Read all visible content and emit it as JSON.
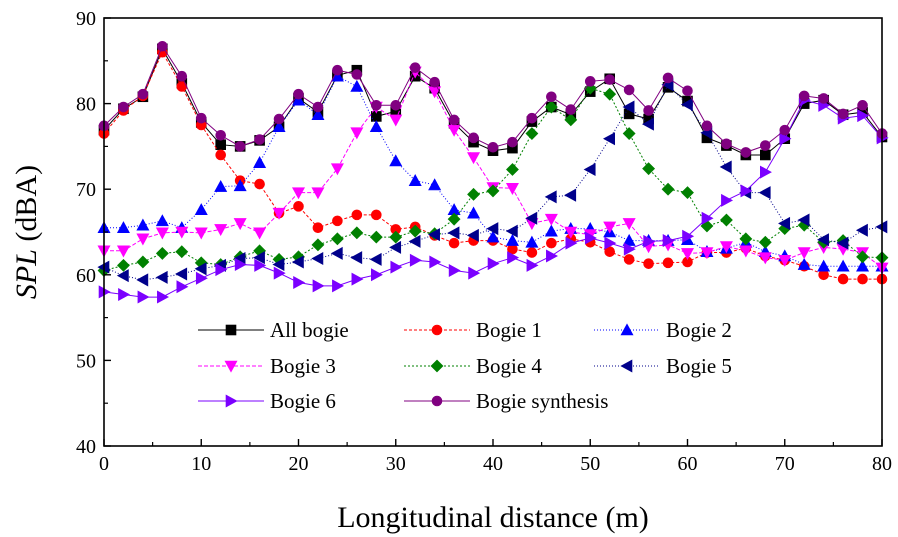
{
  "chart_data": {
    "type": "line",
    "xlabel": "Longitudinal distance (m)",
    "ylabel_symbol": "SPL",
    "ylabel_unit": " (dBA)",
    "xlim": [
      0,
      80
    ],
    "ylim": [
      40,
      90
    ],
    "xticks": [
      0,
      10,
      20,
      30,
      40,
      50,
      60,
      70,
      80
    ],
    "yticks": [
      40,
      50,
      60,
      70,
      80,
      90
    ],
    "grid": false,
    "legend_position": "bottom-center",
    "x": [
      0,
      2,
      4,
      6,
      8,
      10,
      12,
      14,
      16,
      18,
      20,
      22,
      24,
      26,
      28,
      30,
      32,
      34,
      36,
      38,
      40,
      42,
      44,
      46,
      48,
      50,
      52,
      54,
      56,
      58,
      60,
      62,
      64,
      66,
      68,
      70,
      72,
      74,
      76,
      78,
      80
    ],
    "series": [
      {
        "name": "All bogie",
        "color": "#000000",
        "marker": "square",
        "dash": "",
        "values": [
          76.9,
          79.4,
          80.8,
          86.4,
          82.4,
          77.8,
          75.2,
          75.0,
          75.7,
          77.3,
          80.6,
          79.0,
          83.3,
          83.9,
          78.5,
          79.1,
          83.2,
          81.8,
          77.7,
          75.5,
          74.5,
          74.8,
          77.9,
          79.6,
          78.7,
          81.4,
          82.9,
          78.8,
          78.2,
          81.9,
          80.3,
          76.0,
          75.1,
          74.0,
          74.0,
          75.9,
          80.0,
          80.4,
          78.7,
          79.0,
          76.1
        ]
      },
      {
        "name": "Bogie 1",
        "color": "#ff0000",
        "marker": "circle",
        "dash": "3,2",
        "values": [
          76.5,
          79.2,
          80.9,
          86.0,
          82.0,
          77.5,
          74.0,
          71.0,
          70.6,
          67.2,
          68.0,
          65.5,
          66.3,
          67.0,
          67.0,
          65.3,
          65.6,
          64.6,
          63.7,
          64.0,
          64.0,
          63.0,
          62.6,
          63.7,
          64.2,
          63.8,
          62.7,
          61.8,
          61.3,
          61.4,
          61.5,
          62.6,
          62.6,
          63.1,
          62.2,
          61.7,
          61.0,
          60.0,
          59.5,
          59.5,
          59.5
        ]
      },
      {
        "name": "Bogie 2",
        "color": "#0000ff",
        "marker": "triangle-up",
        "dash": "1,2",
        "values": [
          65.5,
          65.5,
          65.8,
          66.3,
          65.5,
          67.6,
          70.3,
          70.4,
          73.1,
          77.3,
          80.4,
          78.7,
          83.2,
          82.0,
          77.3,
          73.3,
          71.0,
          70.5,
          67.6,
          67.2,
          64.4,
          64.0,
          63.8,
          65.1,
          65.4,
          65.4,
          65.0,
          64.0,
          64.0,
          64.0,
          64.1,
          62.7,
          63.1,
          63.8,
          62.7,
          62.2,
          61.2,
          61.0,
          61.0,
          61.0,
          61.0
        ]
      },
      {
        "name": "Bogie 3",
        "color": "#ff00ff",
        "marker": "triangle-down",
        "dash": "4,2",
        "values": [
          62.8,
          62.8,
          64.2,
          64.9,
          65.0,
          64.9,
          65.3,
          66.0,
          64.9,
          67.2,
          69.6,
          69.6,
          72.4,
          76.6,
          79.6,
          78.1,
          83.7,
          81.4,
          76.9,
          73.7,
          70.2,
          70.1,
          66.0,
          66.5,
          65.0,
          64.7,
          65.6,
          66.0,
          63.3,
          63.5,
          62.5,
          62.6,
          63.3,
          62.8,
          62.0,
          61.7,
          62.6,
          63.2,
          63.0,
          62.6,
          60.8
        ]
      },
      {
        "name": "Bogie 4",
        "color": "#008000",
        "marker": "diamond",
        "dash": "2,2",
        "values": [
          60.5,
          61.1,
          61.5,
          62.5,
          62.7,
          61.4,
          61.2,
          62.1,
          62.8,
          61.8,
          62.1,
          63.5,
          64.2,
          64.9,
          64.4,
          64.4,
          65.1,
          64.8,
          66.5,
          69.4,
          69.8,
          72.3,
          76.5,
          79.6,
          78.1,
          81.8,
          81.1,
          76.5,
          72.4,
          70.0,
          69.6,
          65.7,
          66.4,
          64.2,
          63.8,
          65.4,
          65.8,
          63.8,
          64.0,
          62.1,
          62.0
        ]
      },
      {
        "name": "Bogie 5",
        "color": "#00008b",
        "marker": "triangle-left",
        "dash": "1,2",
        "values": [
          60.9,
          59.9,
          59.4,
          59.7,
          60.1,
          60.7,
          61.1,
          61.9,
          62.0,
          61.2,
          61.5,
          61.9,
          62.5,
          62.0,
          61.8,
          63.2,
          63.9,
          64.7,
          64.9,
          64.6,
          65.4,
          65.1,
          66.6,
          69.1,
          69.3,
          72.3,
          75.9,
          79.6,
          77.6,
          82.2,
          79.9,
          76.6,
          72.6,
          69.6,
          69.6,
          66.0,
          66.4,
          64.1,
          63.7,
          65.2,
          65.6
        ]
      },
      {
        "name": "Bogie 6",
        "color": "#7b00ff",
        "marker": "triangle-right",
        "dash": "",
        "values": [
          58.0,
          57.7,
          57.4,
          57.4,
          58.6,
          59.6,
          60.6,
          61.2,
          61.1,
          60.2,
          59.1,
          58.7,
          58.7,
          59.5,
          60.0,
          60.9,
          61.7,
          61.5,
          60.5,
          60.2,
          61.3,
          62.0,
          61.1,
          62.2,
          63.7,
          64.3,
          63.7,
          63.0,
          63.9,
          64.0,
          64.5,
          66.6,
          68.7,
          69.8,
          72.0,
          75.9,
          80.4,
          79.8,
          78.3,
          78.6,
          76.0
        ]
      },
      {
        "name": "Bogie synthesis",
        "color": "#800080",
        "marker": "circle",
        "dash": "",
        "values": [
          77.4,
          79.6,
          81.1,
          86.7,
          83.2,
          78.3,
          76.3,
          75.0,
          75.8,
          78.2,
          81.1,
          79.6,
          83.9,
          83.4,
          79.8,
          79.8,
          84.2,
          82.5,
          78.1,
          76.0,
          74.9,
          75.5,
          78.3,
          80.8,
          79.3,
          82.6,
          82.8,
          81.6,
          79.2,
          83.0,
          81.5,
          77.4,
          75.3,
          74.3,
          75.1,
          76.9,
          80.9,
          80.6,
          78.8,
          79.8,
          76.5
        ]
      }
    ]
  }
}
